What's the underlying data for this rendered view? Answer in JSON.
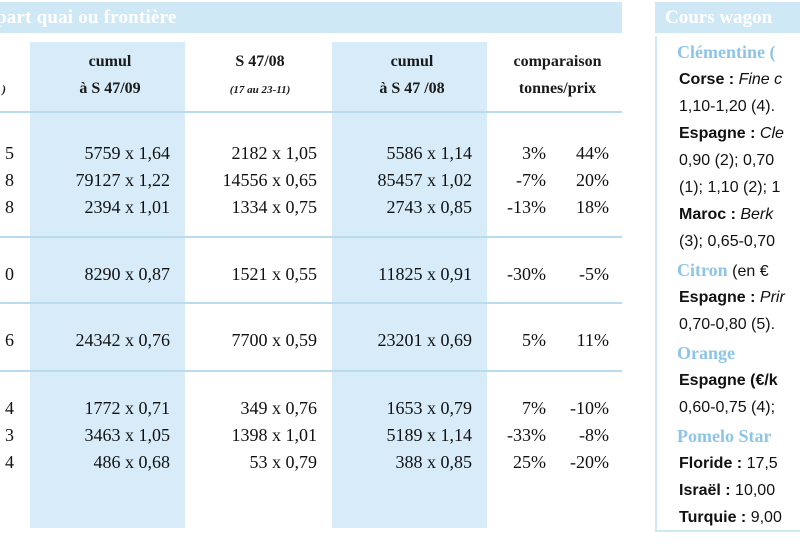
{
  "main": {
    "title": "part quai ou frontière",
    "columns": [
      {
        "line1": "",
        "line2": ")"
      },
      {
        "line1": "cumul",
        "line2": "à S 47/09"
      },
      {
        "line1": "S 47/08",
        "line2": "(17 au 23-11)"
      },
      {
        "line1": "cumul",
        "line2": "à S 47 /08"
      },
      {
        "line1": "comparaison",
        "line2": "tonnes/prix"
      }
    ],
    "rows": [
      {
        "c0": "5",
        "c1": "5759 x 1,64",
        "c2": "2182 x 1,05",
        "c3": "5586 x 1,14",
        "c4": "3%",
        "c5": "44%"
      },
      {
        "c0": "8",
        "c1": "79127 x 1,22",
        "c2": "14556 x 0,65",
        "c3": "85457 x 1,02",
        "c4": "-7%",
        "c5": "20%"
      },
      {
        "c0": "8",
        "c1": "2394 x 1,01",
        "c2": "1334 x 0,75",
        "c3": "2743 x 0,85",
        "c4": "-13%",
        "c5": "18%"
      },
      {
        "c0": "0",
        "c1": "8290 x 0,87",
        "c2": "1521 x 0,55",
        "c3": "11825 x 0,91",
        "c4": "-30%",
        "c5": "-5%"
      },
      {
        "c0": "6",
        "c1": "24342 x 0,76",
        "c2": "7700 x 0,59",
        "c3": "23201 x 0,69",
        "c4": "5%",
        "c5": "11%"
      },
      {
        "c0": "4",
        "c1": "1772 x 0,71",
        "c2": "349 x 0,76",
        "c3": "1653 x 0,79",
        "c4": "7%",
        "c5": "-10%"
      },
      {
        "c0": "3",
        "c1": "3463 x 1,05",
        "c2": "1398 x 1,01",
        "c3": "5189 x 1,14",
        "c4": "-33%",
        "c5": "-8%"
      },
      {
        "c0": "4",
        "c1": "486 x 0,68",
        "c2": "53 x 0,79",
        "c3": "388 x 0,85",
        "c4": "25%",
        "c5": "-20%"
      }
    ]
  },
  "side": {
    "title": "Cours wagon",
    "lines": [
      {
        "type": "prod",
        "text": "Clémentine (",
        "rest": ""
      },
      {
        "type": "text",
        "bold": "Corse :",
        "ital": "Fine c",
        "rest": ""
      },
      {
        "type": "text",
        "bold": "",
        "ital": "",
        "rest": "1,10-1,20 (4)."
      },
      {
        "type": "text",
        "bold": "Espagne :",
        "ital": "Cle",
        "rest": ""
      },
      {
        "type": "text",
        "bold": "",
        "ital": "",
        "rest": "0,90 (2); 0,70"
      },
      {
        "type": "text",
        "bold": "",
        "ital": "",
        "rest": "(1); 1,10 (2); 1"
      },
      {
        "type": "text",
        "bold": "Maroc :",
        "ital": "Berk",
        "rest": ""
      },
      {
        "type": "text",
        "bold": "",
        "ital": "",
        "rest": "(3); 0,65-0,70"
      },
      {
        "type": "prod",
        "text": "Citron",
        "rest": "(en €"
      },
      {
        "type": "text",
        "bold": "Espagne :",
        "ital": "Prir",
        "rest": ""
      },
      {
        "type": "text",
        "bold": "",
        "ital": "",
        "rest": "0,70-0,80 (5)."
      },
      {
        "type": "prod",
        "text": "Orange",
        "rest": ""
      },
      {
        "type": "text",
        "bold": "Espagne (€/k",
        "ital": "",
        "rest": ""
      },
      {
        "type": "text",
        "bold": "",
        "ital": "",
        "rest": "0,60-0,75 (4);"
      },
      {
        "type": "prod",
        "text": "Pomelo Star",
        "rest": ""
      },
      {
        "type": "text",
        "bold": "Floride :",
        "ital": "",
        "rest": "17,5"
      },
      {
        "type": "text",
        "bold": "Israël :",
        "ital": "",
        "rest": "10,00"
      },
      {
        "type": "text",
        "bold": "Turquie :",
        "ital": "",
        "rest": "9,00"
      }
    ]
  }
}
